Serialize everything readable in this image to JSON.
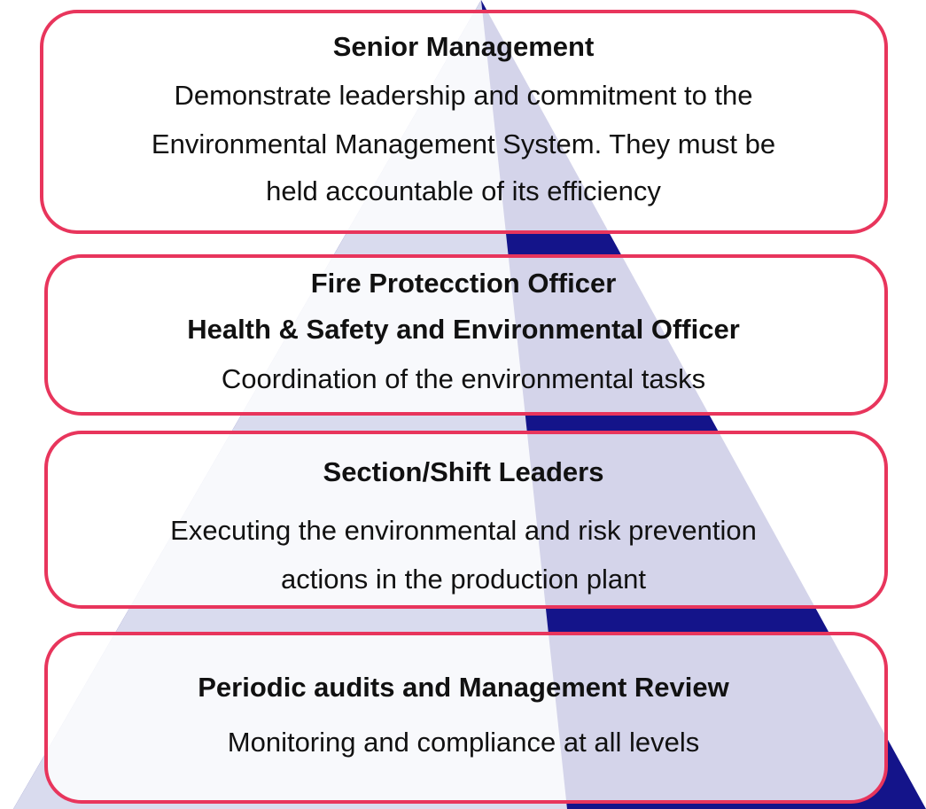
{
  "levels": [
    {
      "titles": [
        "Senior Management"
      ],
      "description": [
        "Demonstrate leadership and commitment to the",
        "Environmental Management System. They must be",
        "held accountable of its efficiency"
      ]
    },
    {
      "titles": [
        "Fire Protecction Officer",
        "Health & Safety and Environmental Officer"
      ],
      "description": [
        "Coordination of the environmental tasks"
      ]
    },
    {
      "titles": [
        "Section/Shift Leaders"
      ],
      "description": [
        "Executing the environmental and risk prevention",
        "actions in the production plant"
      ]
    },
    {
      "titles": [
        "Periodic audits and Management Review"
      ],
      "description": [
        "Monitoring and compliance at all levels"
      ]
    }
  ]
}
